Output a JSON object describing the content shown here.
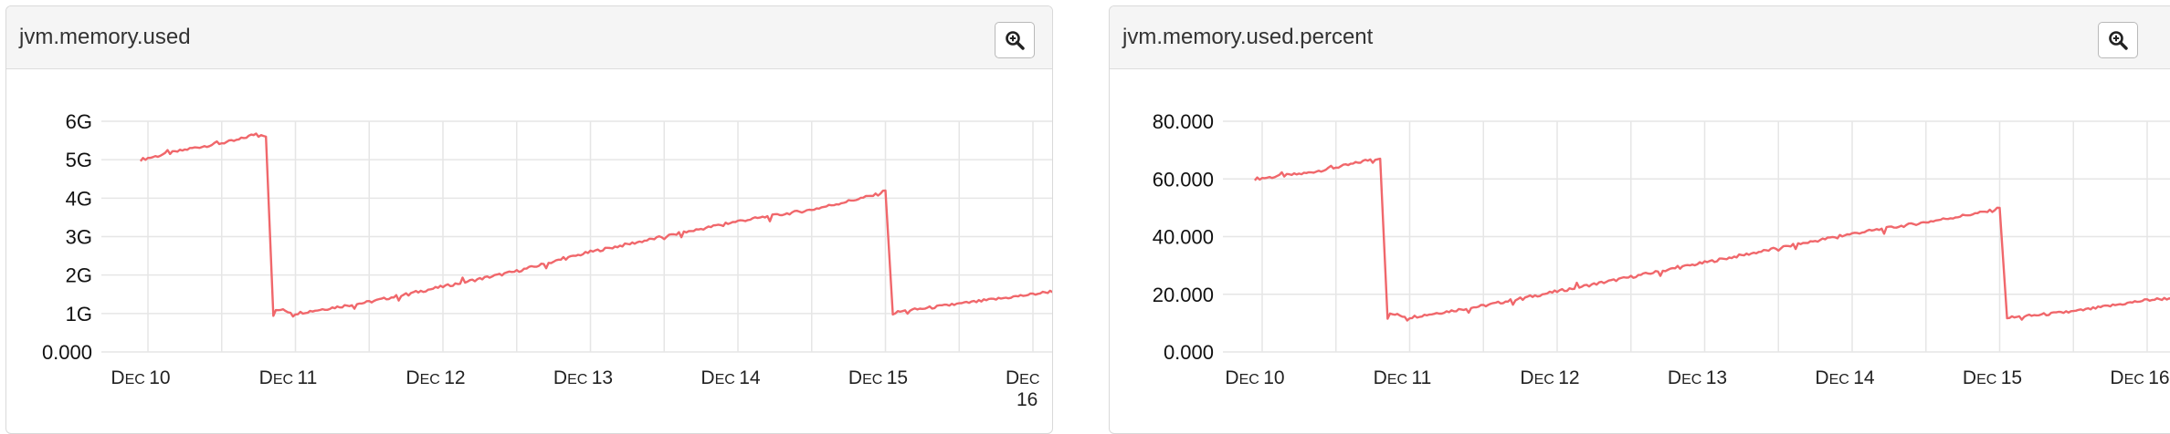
{
  "chart_data": [
    {
      "type": "line",
      "title": "jvm.memory.used",
      "y_ticks": [
        "0.000",
        "1G",
        "2G",
        "3G",
        "4G",
        "5G",
        "6G"
      ],
      "ylim": [
        0,
        6
      ],
      "x_ticks": [
        "Dec 10",
        "Dec 11",
        "Dec 12",
        "Dec 13",
        "Dec 14",
        "Dec 15",
        "Dec 16"
      ],
      "xlim": [
        0,
        6.78
      ],
      "grid": true,
      "series": [
        {
          "color": "#f0676b",
          "x": [
            -0.05,
            0.3,
            0.6,
            0.75,
            0.8,
            0.85,
            0.9,
            1.0,
            1.5,
            2.0,
            2.5,
            3.0,
            3.5,
            4.0,
            4.5,
            4.95,
            5.0,
            5.05,
            5.1,
            5.5,
            6.0,
            6.5,
            6.78
          ],
          "y": [
            5.0,
            5.3,
            5.5,
            5.7,
            5.6,
            1.05,
            1.1,
            1.0,
            1.3,
            1.7,
            2.1,
            2.6,
            3.0,
            3.4,
            3.7,
            4.1,
            4.2,
            1.0,
            1.05,
            1.25,
            1.5,
            1.8,
            2.0
          ]
        }
      ]
    },
    {
      "type": "line",
      "title": "jvm.memory.used.percent",
      "y_ticks": [
        "0.000",
        "20.000",
        "40.000",
        "60.000",
        "80.000"
      ],
      "ylim": [
        0,
        80
      ],
      "x_ticks": [
        "Dec 10",
        "Dec 11",
        "Dec 12",
        "Dec 13",
        "Dec 14",
        "Dec 15",
        "Dec 16"
      ],
      "xlim": [
        0,
        6.78
      ],
      "grid": true,
      "series": [
        {
          "color": "#f0676b",
          "x": [
            -0.05,
            0.3,
            0.6,
            0.75,
            0.8,
            0.85,
            0.9,
            1.0,
            1.5,
            2.0,
            2.5,
            3.0,
            3.5,
            4.0,
            4.5,
            4.95,
            5.0,
            5.05,
            5.1,
            5.5,
            6.0,
            6.5,
            6.78
          ],
          "y": [
            60,
            62,
            65,
            67,
            67,
            13,
            13,
            12,
            16,
            21,
            26,
            31,
            36,
            41,
            45,
            49,
            50,
            12,
            12,
            14,
            18,
            20,
            21
          ]
        }
      ]
    }
  ]
}
